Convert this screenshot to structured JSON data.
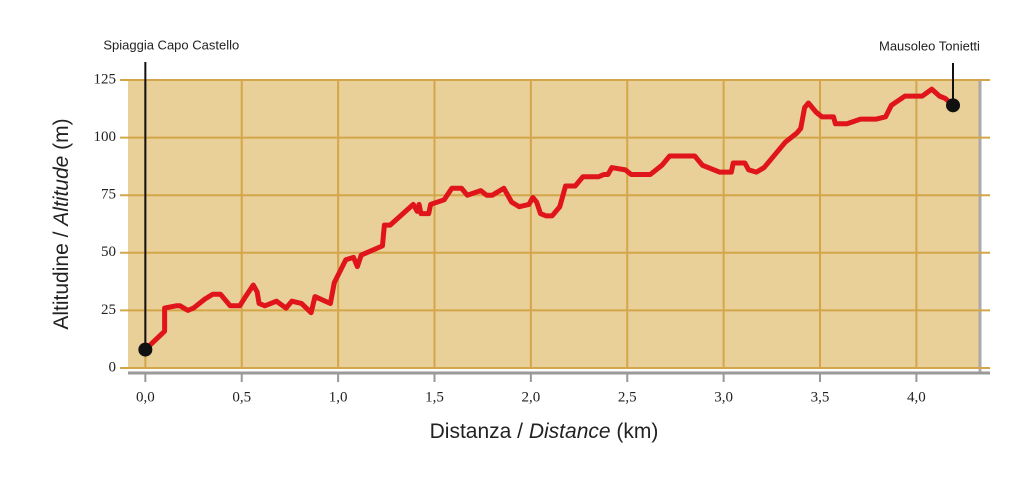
{
  "chart_data": {
    "type": "line",
    "annotations": [
      {
        "text": "Spiaggia Capo Castello",
        "x": 0,
        "y": 8
      },
      {
        "text": "Mausoleo Tonietti",
        "x": 4.19,
        "y": 114
      }
    ],
    "xlabel_parts": [
      {
        "text": "Distanza / "
      },
      {
        "text": "Distance",
        "italic": true
      },
      {
        "text": " (km)"
      }
    ],
    "ylabel_parts": [
      {
        "text": "Altitudine / "
      },
      {
        "text": "Altitude",
        "italic": true
      },
      {
        "text": " (m)"
      }
    ],
    "xlim": [
      -0.09,
      4.33
    ],
    "ylim": [
      0,
      125
    ],
    "xticks": [
      {
        "value": 0,
        "label": "0,0"
      },
      {
        "value": 0.5,
        "label": "0,5"
      },
      {
        "value": 1,
        "label": "1,0"
      },
      {
        "value": 1.5,
        "label": "1,5"
      },
      {
        "value": 2,
        "label": "2,0"
      },
      {
        "value": 2.5,
        "label": "2,5"
      },
      {
        "value": 3,
        "label": "3,0"
      },
      {
        "value": 3.5,
        "label": "3,5"
      },
      {
        "value": 4,
        "label": "4,0"
      }
    ],
    "yticks": [
      0,
      25,
      50,
      75,
      100,
      125
    ],
    "grid": true,
    "series": [
      {
        "color": "#e0141b",
        "x": [
          0,
          0.1,
          0.1,
          0.16,
          0.18,
          0.22,
          0.25,
          0.31,
          0.35,
          0.39,
          0.44,
          0.49,
          0.52,
          0.56,
          0.58,
          0.59,
          0.62,
          0.68,
          0.73,
          0.76,
          0.81,
          0.86,
          0.88,
          0.96,
          0.98,
          1.04,
          1.08,
          1.1,
          1.12,
          1.23,
          1.24,
          1.27,
          1.39,
          1.41,
          1.42,
          1.43,
          1.47,
          1.48,
          1.55,
          1.59,
          1.64,
          1.67,
          1.74,
          1.77,
          1.8,
          1.86,
          1.9,
          1.94,
          1.99,
          2.01,
          2.03,
          2.05,
          2.08,
          2.11,
          2.15,
          2.18,
          2.23,
          2.27,
          2.35,
          2.38,
          2.4,
          2.42,
          2.49,
          2.52,
          2.62,
          2.65,
          2.68,
          2.72,
          2.75,
          2.85,
          2.89,
          2.98,
          3.04,
          3.05,
          3.11,
          3.13,
          3.17,
          3.21,
          3.32,
          3.38,
          3.4,
          3.42,
          3.44,
          3.48,
          3.51,
          3.57,
          3.58,
          3.64,
          3.71,
          3.79,
          3.84,
          3.87,
          3.94,
          3.97,
          4.03,
          4.08,
          4.12,
          4.15,
          4.19
        ],
        "values": [
          8,
          16,
          26,
          27,
          27,
          25,
          26,
          30,
          32,
          32,
          27,
          27,
          31,
          36,
          33,
          28,
          27,
          29,
          26,
          29,
          28,
          24,
          31,
          28,
          37,
          47,
          48,
          44,
          49,
          53,
          62,
          62,
          71,
          68,
          71,
          67,
          67,
          71,
          73,
          78,
          78,
          75,
          77,
          75,
          75,
          78,
          72,
          70,
          71,
          74,
          72,
          67,
          66,
          66,
          70,
          79,
          79,
          83,
          83,
          84,
          84,
          87,
          86,
          84,
          84,
          86,
          88,
          92,
          92,
          92,
          88,
          85,
          85,
          89,
          89,
          86,
          85,
          87,
          98,
          102,
          104,
          113,
          115,
          111,
          109,
          109,
          106,
          106,
          108,
          108,
          109,
          114,
          118,
          118,
          118,
          121,
          118,
          117,
          114
        ]
      }
    ]
  }
}
